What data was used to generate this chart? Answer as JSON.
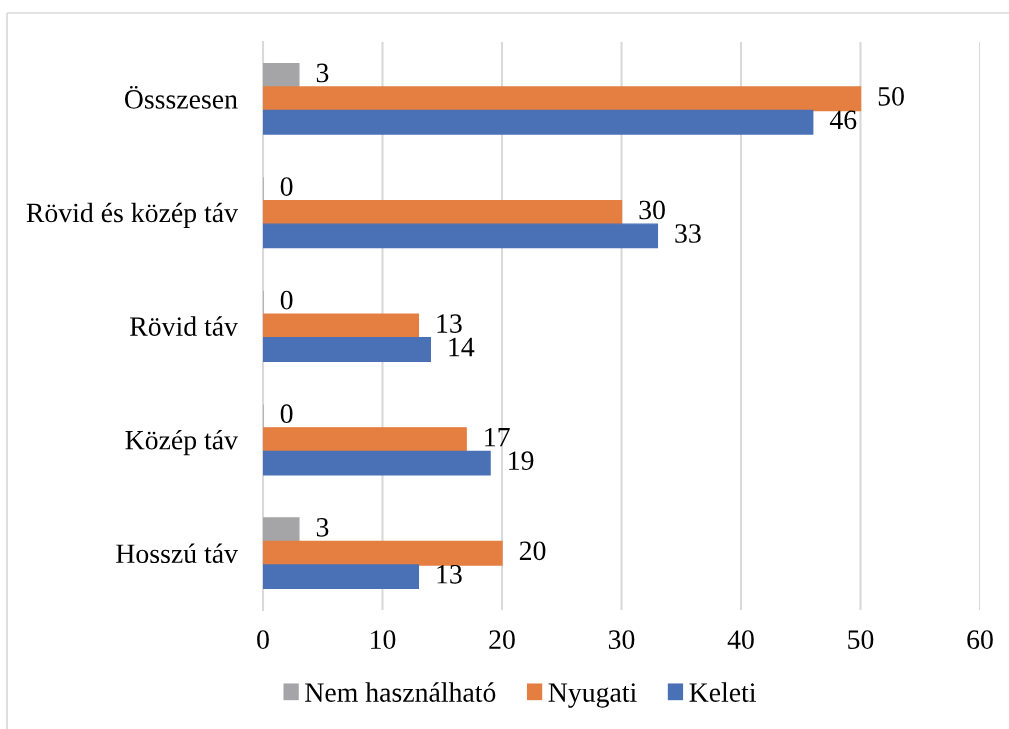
{
  "chart_data": {
    "type": "bar",
    "orientation": "horizontal",
    "categories": [
      "Össszesen",
      "Rövid és közép táv",
      "Rövid táv",
      "Közép táv",
      "Hosszú táv"
    ],
    "series": [
      {
        "name": "Nem használható",
        "color": "#a5a5a7",
        "values": [
          3,
          0,
          0,
          0,
          3
        ]
      },
      {
        "name": "Nyugati",
        "color": "#e47f41",
        "values": [
          50,
          30,
          13,
          17,
          20
        ]
      },
      {
        "name": "Keleti",
        "color": "#4a71b6",
        "values": [
          46,
          33,
          14,
          19,
          13
        ]
      }
    ],
    "xlim": [
      0,
      60
    ],
    "xticks": [
      0,
      10,
      20,
      30,
      40,
      50,
      60
    ],
    "grid": "x",
    "legend": "bottom",
    "data_labels": true
  }
}
